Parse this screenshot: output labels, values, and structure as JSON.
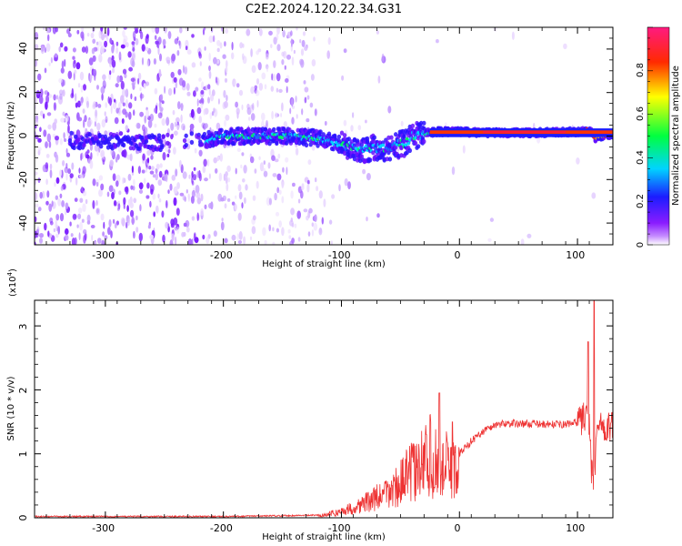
{
  "title": "C2E2.2024.120.22.34.G31",
  "chart_data": [
    {
      "type": "heatmap",
      "xlabel": "Height of straight line (km)",
      "ylabel": "Frequency (Hz)",
      "xlim": [
        -360,
        130
      ],
      "ylim": [
        -50,
        50
      ],
      "x_ticks": [
        -300,
        -200,
        -100,
        0,
        100
      ],
      "y_ticks": [
        -40,
        -20,
        0,
        20,
        40
      ],
      "colorbar": {
        "label": "Normalized spectral amplitude",
        "range": [
          0.0,
          1.0
        ],
        "ticks": [
          0.0,
          0.2,
          0.4,
          0.6,
          0.8
        ],
        "colors": [
          "#ffffff",
          "#8a1cff",
          "#1c1cff",
          "#00e6ff",
          "#00ff40",
          "#ffff00",
          "#ff2a00",
          "#ff1a80"
        ]
      },
      "ridge": {
        "description_points_x": [
          -300,
          -250,
          -215,
          -200,
          -150,
          -120,
          -100,
          -80,
          -60,
          -45,
          -40,
          -30,
          -20,
          0,
          20,
          60,
          100,
          110,
          115,
          130
        ],
        "description_points_y": [
          -2,
          -3,
          -2,
          0,
          0,
          -1,
          -4,
          -6,
          -5,
          -3,
          0,
          1,
          2,
          2,
          1.5,
          1.5,
          2,
          3,
          -1,
          1
        ]
      },
      "grid": false
    },
    {
      "type": "line",
      "xlabel": "Height of straight line (km)",
      "ylabel": "SNR (10 * v/v)",
      "y_scale_label": "(x10",
      "y_scale_exp": "4",
      "y_scale_close": ")",
      "xlim": [
        -360,
        130
      ],
      "ylim": [
        0,
        3.4
      ],
      "x_ticks": [
        -300,
        -200,
        -100,
        0,
        100
      ],
      "y_ticks": [
        0,
        1,
        2,
        3
      ],
      "series_color": "#ee3333",
      "envelope_x": [
        -360,
        -200,
        -120,
        -105,
        -90,
        -80,
        -70,
        -60,
        -50,
        -40,
        -35,
        -30,
        -25,
        -20,
        -15,
        -10,
        -5,
        0,
        5,
        10,
        20,
        30,
        40,
        50,
        60,
        70,
        80,
        90,
        100,
        105,
        108,
        110,
        112,
        114,
        116,
        118,
        120,
        125,
        130
      ],
      "envelope_y": [
        0.02,
        0.02,
        0.04,
        0.1,
        0.2,
        0.3,
        0.4,
        0.5,
        0.7,
        0.95,
        0.9,
        1.2,
        1.25,
        1.1,
        1.0,
        1.05,
        0.95,
        1.0,
        1.1,
        1.2,
        1.35,
        1.45,
        1.48,
        1.47,
        1.47,
        1.46,
        1.46,
        1.46,
        1.5,
        1.55,
        1.6,
        1.4,
        0.7,
        0.5,
        1.3,
        1.45,
        1.45,
        1.42,
        1.42
      ],
      "peaks": [
        {
          "x": -17,
          "y": 1.95
        },
        {
          "x": -28,
          "y": 1.3
        },
        {
          "x": -6,
          "y": 1.5
        },
        {
          "x": 103,
          "y": 1.7
        },
        {
          "x": 109,
          "y": 2.75
        },
        {
          "x": 114,
          "y": 3.4
        },
        {
          "x": 117,
          "y": 1.45
        }
      ],
      "grid": false
    }
  ]
}
